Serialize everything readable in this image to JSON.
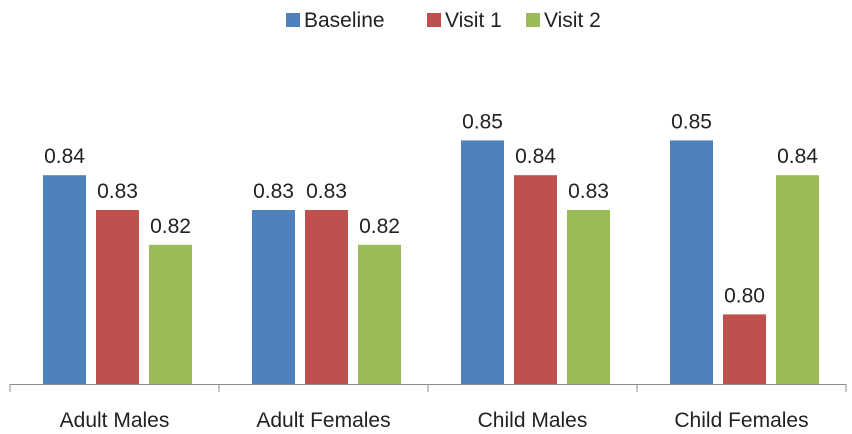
{
  "chart_data": {
    "type": "bar",
    "categories": [
      "Adult Males",
      "Adult Females",
      "Child Males",
      "Child Females"
    ],
    "series": [
      {
        "name": "Baseline",
        "values": [
          0.84,
          0.83,
          0.85,
          0.85
        ],
        "labels": [
          "0.84",
          "0.83",
          "0.85",
          "0.85"
        ],
        "color": "#4F81BD"
      },
      {
        "name": "Visit 1",
        "values": [
          0.83,
          0.83,
          0.84,
          0.8
        ],
        "labels": [
          "0.83",
          "0.83",
          "0.84",
          "0.80"
        ],
        "color": "#C0504D"
      },
      {
        "name": "Visit 2",
        "values": [
          0.82,
          0.82,
          0.83,
          0.84
        ],
        "labels": [
          "0.82",
          "0.82",
          "0.83",
          "0.84"
        ],
        "color": "#9BBB59"
      }
    ],
    "ylim": [
      0.78,
      0.86
    ],
    "legend": "top-center",
    "grid": false,
    "y_axis_visible": false
  }
}
